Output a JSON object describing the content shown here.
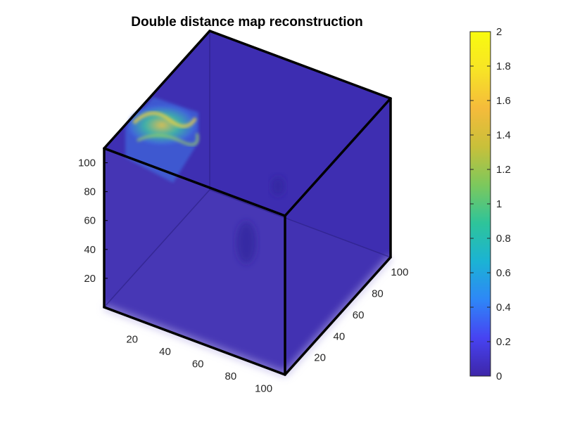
{
  "chart_data": {
    "type": "heatmap",
    "title": "Double distance map reconstruction",
    "plot_style": "3D volume render",
    "axes": {
      "x": {
        "range": [
          0,
          110
        ],
        "ticks": [
          20,
          40,
          60,
          80,
          100
        ]
      },
      "y": {
        "range": [
          0,
          110
        ],
        "ticks": [
          20,
          40,
          60,
          80,
          100
        ]
      },
      "z": {
        "range": [
          0,
          110
        ],
        "ticks": [
          20,
          40,
          60,
          80,
          100
        ]
      }
    },
    "colorbar": {
      "range": [
        0,
        2
      ],
      "ticks": [
        0,
        0.2,
        0.4,
        0.6,
        0.8,
        1,
        1.2,
        1.4,
        1.6,
        1.8,
        2
      ],
      "tick_labels": [
        "0",
        "0.2",
        "0.4",
        "0.6",
        "0.8",
        "1",
        "1.2",
        "1.4",
        "1.6",
        "1.8",
        "2"
      ],
      "colormap": "parula",
      "colors": [
        "#3e26a8",
        "#4743f2",
        "#2e87f7",
        "#1bb3d4",
        "#2ec49a",
        "#7dc85c",
        "#c9c03a",
        "#f5bb3b",
        "#f7e426",
        "#f9fb0e"
      ]
    },
    "volume": {
      "background_value": 0,
      "background_color": "#4030b0"
    },
    "grid": false,
    "box": true
  }
}
